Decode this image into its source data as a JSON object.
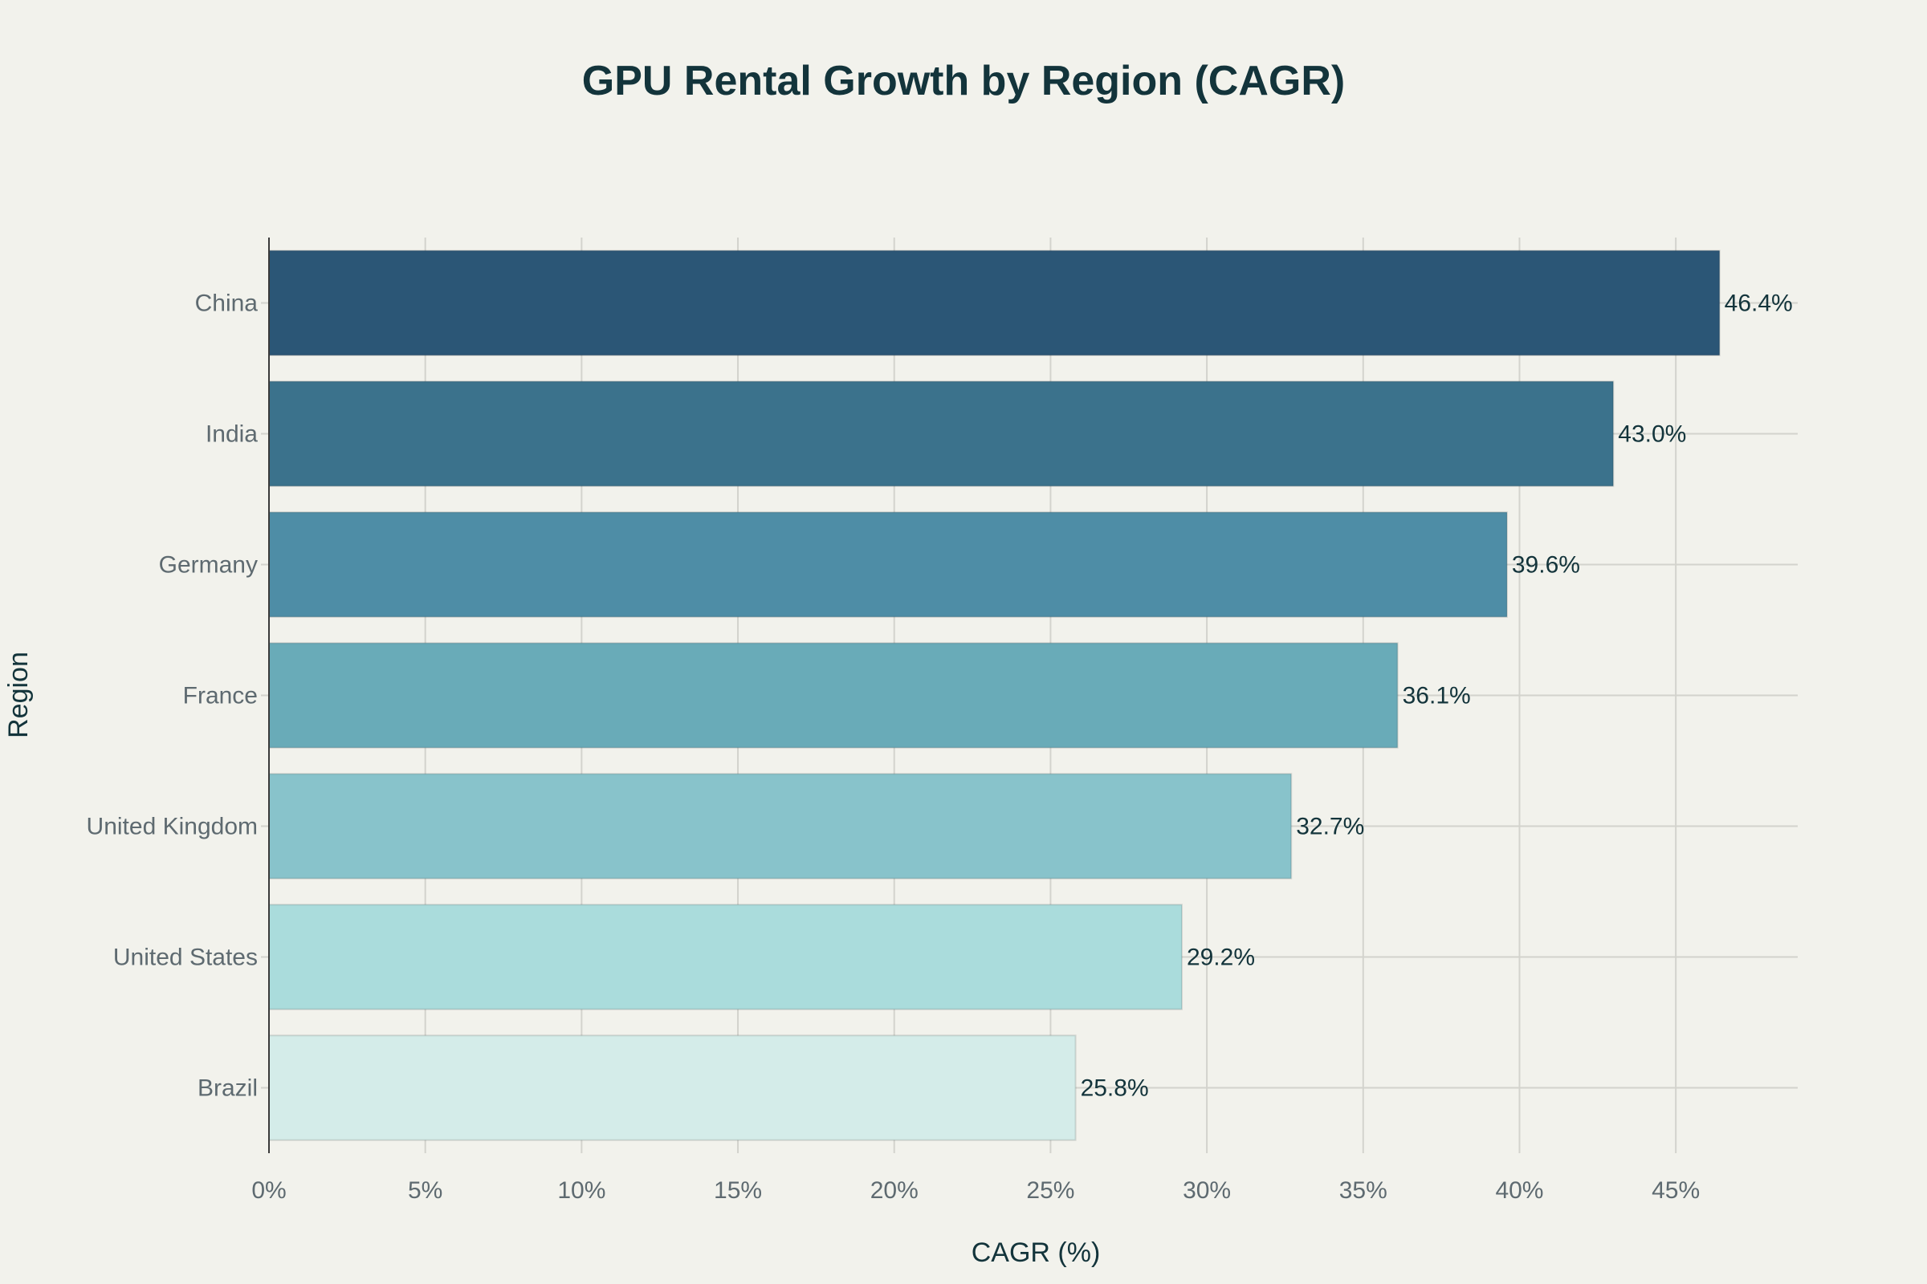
{
  "chart_data": {
    "type": "bar",
    "orientation": "horizontal",
    "title": "GPU Rental Growth by Region (CAGR)",
    "xlabel": "CAGR (%)",
    "ylabel": "Region",
    "categories": [
      "China",
      "India",
      "Germany",
      "France",
      "United Kingdom",
      "United States",
      "Brazil"
    ],
    "values": [
      46.4,
      43.0,
      39.6,
      36.1,
      32.7,
      29.2,
      25.8
    ],
    "data_labels": [
      "46.4%",
      "43.0%",
      "39.6%",
      "36.1%",
      "32.7%",
      "29.2%",
      "25.8%"
    ],
    "colors": [
      "#2B5676",
      "#3B728C",
      "#4E8DA6",
      "#69ABB8",
      "#88C3CB",
      "#AADCDC",
      "#D4ECE9"
    ],
    "xlim": [
      0,
      48.9
    ],
    "xticks": [
      0,
      5,
      10,
      15,
      20,
      25,
      30,
      35,
      40,
      45
    ],
    "xtick_labels": [
      "0%",
      "5%",
      "10%",
      "15%",
      "20%",
      "25%",
      "30%",
      "35%",
      "40%",
      "45%"
    ],
    "grid": true,
    "legend": "none",
    "background": "#F2F2EC"
  }
}
